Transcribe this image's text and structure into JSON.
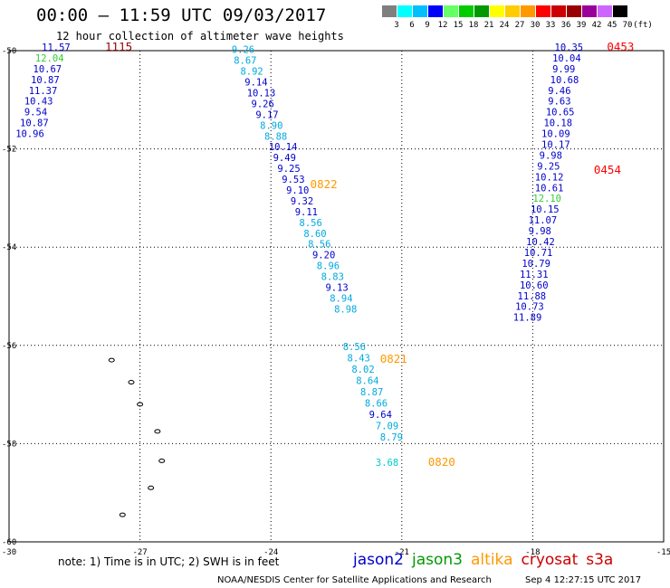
{
  "header": {
    "title": "00:00 – 11:59 UTC 09/03/2017",
    "subtitle": "12 hour collection of altimeter wave heights"
  },
  "colorbar": {
    "labels": [
      "3",
      "6",
      "9",
      "12",
      "15",
      "18",
      "21",
      "24",
      "27",
      "30",
      "33",
      "36",
      "39",
      "42",
      "45",
      "70"
    ],
    "unit": "(ft)",
    "colors": [
      "#7f7f7f",
      "#00ffff",
      "#00bfff",
      "#0000ff",
      "#66ff66",
      "#00cc00",
      "#009900",
      "#ffff00",
      "#ffcc00",
      "#ff9900",
      "#ff0000",
      "#cc0000",
      "#990000",
      "#990099",
      "#cc66ff",
      "#000000"
    ]
  },
  "footer": {
    "note": "note: 1) Time is in UTC; 2) SWH is in feet",
    "credit": "NOAA/NESDIS Center for Satellite Applications and Research",
    "timestamp": "Sep  4 12:27:15 UTC 2017"
  },
  "legend": [
    {
      "name": "jason2",
      "color": "#0000cc"
    },
    {
      "name": "jason3",
      "color": "#009900"
    },
    {
      "name": "altika",
      "color": "#ff9900"
    },
    {
      "name": "cryosat",
      "color": "#cc0000"
    },
    {
      "name": "s3a",
      "color": "#cc0000"
    }
  ],
  "chart_data": {
    "type": "scatter",
    "xlim": [
      -30,
      -15
    ],
    "ylim": [
      -60,
      -50
    ],
    "x_ticks": [
      "-30",
      "-27",
      "-24",
      "-21",
      "-18",
      "-15"
    ],
    "y_ticks": [
      "-50",
      "-52",
      "-54",
      "-56",
      "-58",
      "-60"
    ],
    "grid": true,
    "tracks": [
      {
        "time": "1115",
        "time_color": "#990000",
        "lon": -27.8,
        "lat": -50.0
      },
      {
        "time": "0822",
        "time_color": "#ff9900",
        "lon": -23.1,
        "lat": -52.8
      },
      {
        "time": "0821",
        "time_color": "#ff9900",
        "lon": -21.5,
        "lat": -56.35
      },
      {
        "time": "0820",
        "time_color": "#ff9900",
        "lon": -20.4,
        "lat": -58.45
      },
      {
        "time": "0453",
        "time_color": "#ff0000",
        "lon": -16.3,
        "lat": -50.0
      },
      {
        "time": "0454",
        "time_color": "#ff0000",
        "lon": -16.6,
        "lat": -52.5
      }
    ],
    "points": [
      {
        "v": "11.57",
        "lon": -29.25,
        "lat": -50.0,
        "c": "#0000cc"
      },
      {
        "v": "12.04",
        "lon": -29.4,
        "lat": -50.22,
        "c": "#33cc33"
      },
      {
        "v": "10.67",
        "lon": -29.45,
        "lat": -50.44,
        "c": "#0000cc"
      },
      {
        "v": "10.87",
        "lon": -29.5,
        "lat": -50.66,
        "c": "#0000cc"
      },
      {
        "v": "11.37",
        "lon": -29.55,
        "lat": -50.88,
        "c": "#0000cc"
      },
      {
        "v": "10.43",
        "lon": -29.65,
        "lat": -51.1,
        "c": "#0000cc"
      },
      {
        "v": "9.54",
        "lon": -29.65,
        "lat": -51.32,
        "c": "#0000cc"
      },
      {
        "v": "10.87",
        "lon": -29.75,
        "lat": -51.54,
        "c": "#0000cc"
      },
      {
        "v": "10.96",
        "lon": -29.85,
        "lat": -51.76,
        "c": "#0000cc"
      },
      {
        "v": "9.26",
        "lon": -24.9,
        "lat": -50.05,
        "c": "#00aadd"
      },
      {
        "v": "8.67",
        "lon": -24.85,
        "lat": -50.27,
        "c": "#00aadd"
      },
      {
        "v": "8.92",
        "lon": -24.7,
        "lat": -50.49,
        "c": "#00aadd"
      },
      {
        "v": "9.14",
        "lon": -24.6,
        "lat": -50.71,
        "c": "#0000cc"
      },
      {
        "v": "10.13",
        "lon": -24.55,
        "lat": -50.93,
        "c": "#0000cc"
      },
      {
        "v": "9.26",
        "lon": -24.45,
        "lat": -51.15,
        "c": "#0000cc"
      },
      {
        "v": "9.17",
        "lon": -24.35,
        "lat": -51.37,
        "c": "#0000cc"
      },
      {
        "v": "8.90",
        "lon": -24.25,
        "lat": -51.59,
        "c": "#00aadd"
      },
      {
        "v": "8.88",
        "lon": -24.15,
        "lat": -51.81,
        "c": "#00aadd"
      },
      {
        "v": "10.14",
        "lon": -24.05,
        "lat": -52.03,
        "c": "#0000cc"
      },
      {
        "v": "9.49",
        "lon": -23.95,
        "lat": -52.25,
        "c": "#0000cc"
      },
      {
        "v": "9.25",
        "lon": -23.85,
        "lat": -52.47,
        "c": "#0000cc"
      },
      {
        "v": "9.53",
        "lon": -23.75,
        "lat": -52.69,
        "c": "#0000cc"
      },
      {
        "v": "9.10",
        "lon": -23.65,
        "lat": -52.91,
        "c": "#0000cc"
      },
      {
        "v": "9.32",
        "lon": -23.55,
        "lat": -53.13,
        "c": "#0000cc"
      },
      {
        "v": "9.11",
        "lon": -23.45,
        "lat": -53.35,
        "c": "#0000cc"
      },
      {
        "v": "8.56",
        "lon": -23.35,
        "lat": -53.57,
        "c": "#00aadd"
      },
      {
        "v": "8.60",
        "lon": -23.25,
        "lat": -53.79,
        "c": "#00aadd"
      },
      {
        "v": "8.56",
        "lon": -23.15,
        "lat": -54.01,
        "c": "#00aadd"
      },
      {
        "v": "9.20",
        "lon": -23.05,
        "lat": -54.23,
        "c": "#0000cc"
      },
      {
        "v": "8.96",
        "lon": -22.95,
        "lat": -54.45,
        "c": "#00aadd"
      },
      {
        "v": "8.83",
        "lon": -22.85,
        "lat": -54.67,
        "c": "#00aadd"
      },
      {
        "v": "9.13",
        "lon": -22.75,
        "lat": -54.89,
        "c": "#0000cc"
      },
      {
        "v": "8.94",
        "lon": -22.65,
        "lat": -55.11,
        "c": "#00aadd"
      },
      {
        "v": "8.98",
        "lon": -22.55,
        "lat": -55.33,
        "c": "#00aadd"
      },
      {
        "v": "8.56",
        "lon": -22.35,
        "lat": -56.1,
        "c": "#00aadd"
      },
      {
        "v": "8.43",
        "lon": -22.25,
        "lat": -56.33,
        "c": "#00aadd"
      },
      {
        "v": "8.02",
        "lon": -22.15,
        "lat": -56.56,
        "c": "#00aadd"
      },
      {
        "v": "8.64",
        "lon": -22.05,
        "lat": -56.79,
        "c": "#00aadd"
      },
      {
        "v": "8.87",
        "lon": -21.95,
        "lat": -57.02,
        "c": "#00aadd"
      },
      {
        "v": "8.66",
        "lon": -21.85,
        "lat": -57.25,
        "c": "#00aadd"
      },
      {
        "v": "9.64",
        "lon": -21.75,
        "lat": -57.48,
        "c": "#0000cc"
      },
      {
        "v": "7.09",
        "lon": -21.6,
        "lat": -57.71,
        "c": "#00aadd"
      },
      {
        "v": "8.79",
        "lon": -21.5,
        "lat": -57.94,
        "c": "#00aadd"
      },
      {
        "v": "3.68",
        "lon": -21.6,
        "lat": -58.45,
        "c": "#00cccc"
      },
      {
        "v": "10.35",
        "lon": -17.5,
        "lat": -50.0,
        "c": "#0000cc"
      },
      {
        "v": "10.04",
        "lon": -17.55,
        "lat": -50.22,
        "c": "#0000cc"
      },
      {
        "v": "9.99",
        "lon": -17.55,
        "lat": -50.44,
        "c": "#0000cc"
      },
      {
        "v": "10.68",
        "lon": -17.6,
        "lat": -50.66,
        "c": "#0000cc"
      },
      {
        "v": "9.46",
        "lon": -17.65,
        "lat": -50.88,
        "c": "#0000cc"
      },
      {
        "v": "9.63",
        "lon": -17.65,
        "lat": -51.1,
        "c": "#0000cc"
      },
      {
        "v": "10.65",
        "lon": -17.7,
        "lat": -51.32,
        "c": "#0000cc"
      },
      {
        "v": "10.18",
        "lon": -17.75,
        "lat": -51.54,
        "c": "#0000cc"
      },
      {
        "v": "10.09",
        "lon": -17.8,
        "lat": -51.76,
        "c": "#0000cc"
      },
      {
        "v": "10.17",
        "lon": -17.8,
        "lat": -51.98,
        "c": "#0000cc"
      },
      {
        "v": "9.98",
        "lon": -17.85,
        "lat": -52.2,
        "c": "#0000cc"
      },
      {
        "v": "9.25",
        "lon": -17.9,
        "lat": -52.42,
        "c": "#0000cc"
      },
      {
        "v": "10.12",
        "lon": -17.95,
        "lat": -52.64,
        "c": "#0000cc"
      },
      {
        "v": "10.61",
        "lon": -17.95,
        "lat": -52.86,
        "c": "#0000cc"
      },
      {
        "v": "12.10",
        "lon": -18.0,
        "lat": -53.08,
        "c": "#33cc33"
      },
      {
        "v": "10.15",
        "lon": -18.05,
        "lat": -53.3,
        "c": "#0000cc"
      },
      {
        "v": "11.07",
        "lon": -18.1,
        "lat": -53.52,
        "c": "#0000cc"
      },
      {
        "v": "9.98",
        "lon": -18.1,
        "lat": -53.74,
        "c": "#0000cc"
      },
      {
        "v": "10.42",
        "lon": -18.15,
        "lat": -53.96,
        "c": "#0000cc"
      },
      {
        "v": "10.71",
        "lon": -18.2,
        "lat": -54.18,
        "c": "#0000cc"
      },
      {
        "v": "10.79",
        "lon": -18.25,
        "lat": -54.4,
        "c": "#0000cc"
      },
      {
        "v": "11.31",
        "lon": -18.3,
        "lat": -54.62,
        "c": "#0000cc"
      },
      {
        "v": "10.60",
        "lon": -18.3,
        "lat": -54.84,
        "c": "#0000cc"
      },
      {
        "v": "11.88",
        "lon": -18.35,
        "lat": -55.06,
        "c": "#0000cc"
      },
      {
        "v": "10.73",
        "lon": -18.4,
        "lat": -55.28,
        "c": "#0000cc"
      },
      {
        "v": "11.89",
        "lon": -18.45,
        "lat": -55.5,
        "c": "#0000cc"
      }
    ],
    "islands": [
      {
        "lon": -27.65,
        "lat": -56.3
      },
      {
        "lon": -27.2,
        "lat": -56.75
      },
      {
        "lon": -27.0,
        "lat": -57.2
      },
      {
        "lon": -26.6,
        "lat": -57.75
      },
      {
        "lon": -26.5,
        "lat": -58.35
      },
      {
        "lon": -26.75,
        "lat": -58.9
      },
      {
        "lon": -27.4,
        "lat": -59.45
      }
    ]
  }
}
